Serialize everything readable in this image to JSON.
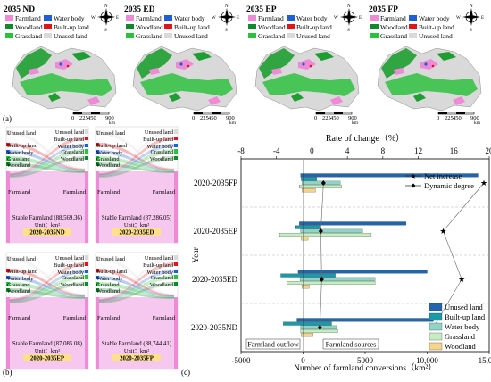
{
  "maps": [
    {
      "title": "2035 ND"
    },
    {
      "title": "2035 ED"
    },
    {
      "title": "2035 EP"
    },
    {
      "title": "2035 FP"
    }
  ],
  "landuse_legend": [
    {
      "label": "Farmland",
      "color": "#ef8bd6"
    },
    {
      "label": "Water body",
      "color": "#1f5fd6"
    },
    {
      "label": "Woodland",
      "color": "#0e8a2a"
    },
    {
      "label": "Built-up land",
      "color": "#e0141b"
    },
    {
      "label": "Grassland",
      "color": "#29c23b"
    },
    {
      "label": "Unused land",
      "color": "#d9d9d9"
    }
  ],
  "compass_letters": [
    "N",
    "E",
    "S",
    "W"
  ],
  "scale_labels": [
    "0",
    "225",
    "450",
    "900"
  ],
  "scale_unit": "km",
  "panel_labels": {
    "a": "(a)",
    "b": "(b)",
    "c": "(c)"
  },
  "sankeys": [
    {
      "scenario": "2020-2035ND",
      "stable": "Stable Farmland (88,569.36)",
      "unit": "Unit：km²",
      "left": [
        "Unused land",
        "Built-up land",
        "Water body",
        "Grassland",
        "Woodland"
      ],
      "right": [
        "Unused land",
        "Built-up land",
        "Water body",
        "Grassland",
        "Woodland"
      ],
      "farmland": "Farmland"
    },
    {
      "scenario": "2020-2035ED",
      "stable": "Stable Farmland (87,286.05)",
      "unit": "Unit：km²",
      "left": [
        "Unused land",
        "Built-up land",
        "Water body",
        "Grassland",
        "Woodland"
      ],
      "right": [
        "Unused land",
        "Built-up land",
        "Water body",
        "Grassland",
        "Woodland"
      ],
      "farmland": "Farmland"
    },
    {
      "scenario": "2020-2035EP",
      "stable": "Stable Farmland (87,085.08)",
      "unit": "Unit：km²",
      "left": [
        "Unused land",
        "Built-up land",
        "Water body",
        "Grassland",
        "Woodland"
      ],
      "right": [
        "Unused land",
        "Built-up land",
        "Water body",
        "Grassland",
        "Woodland"
      ],
      "farmland": "Farmland"
    },
    {
      "scenario": "2020-2035FP",
      "stable": "Stable Farmland (88,744.41)",
      "unit": "Unit：km²",
      "left": [
        "Unused land",
        "Built-up land",
        "Water body",
        "Grassland",
        "Woodland"
      ],
      "right": [
        "Unused land",
        "Built-up land",
        "Water body",
        "Grassland",
        "Woodland"
      ],
      "farmland": "Farmland"
    }
  ],
  "chart_data": {
    "type": "bar",
    "top_axis_title": "Rate of change（%）",
    "top_ticks": [
      "-8",
      "-4",
      "0",
      "4",
      "8",
      "12",
      "16",
      "20"
    ],
    "top_range": [
      -8,
      20
    ],
    "xlabel": "Number of farmland conversions（km²）",
    "x_ticks": [
      "-5000",
      "0",
      "5000",
      "10,000",
      "15,000"
    ],
    "xlim": [
      -5000,
      15000
    ],
    "ylabel": "Year",
    "categories": [
      "2020-2035FP",
      "2020-2035EP",
      "2020-2035ED",
      "2020-2035ND"
    ],
    "series": [
      {
        "name": "Unused land",
        "color": "#2166ac",
        "sources": [
          14100,
          8300,
          10000,
          10500
        ],
        "outflow": [
          -200,
          -300,
          -400,
          -500
        ]
      },
      {
        "name": "Built-up land",
        "color": "#1a9aa8",
        "sources": [
          1100,
          1400,
          2600,
          2300
        ],
        "outflow": [
          -150,
          -600,
          -1800,
          -1600
        ]
      },
      {
        "name": "Water body",
        "color": "#8fd4c6",
        "sources": [
          3000,
          4800,
          5800,
          2700
        ],
        "outflow": [
          -100,
          -200,
          -250,
          -200
        ]
      },
      {
        "name": "Grassland",
        "color": "#c6ecc3",
        "sources": [
          3100,
          5500,
          5800,
          2800
        ],
        "outflow": [
          -300,
          -1900,
          -1300,
          -200
        ]
      },
      {
        "name": "Woodland",
        "color": "#f5d58c",
        "sources": [
          1000,
          400,
          500,
          800
        ],
        "outflow": [
          -100,
          -150,
          -100,
          -150
        ]
      }
    ],
    "net_increase": {
      "name": "Net increase",
      "values": [
        19.4,
        14.8,
        16.9,
        13.7
      ]
    },
    "dynamic_degree": {
      "name": "Dynamic degree",
      "values": [
        1.3,
        1.0,
        1.1,
        0.9
      ]
    },
    "annotations": [
      "Farmland outflow",
      "Farmland sources"
    ]
  }
}
